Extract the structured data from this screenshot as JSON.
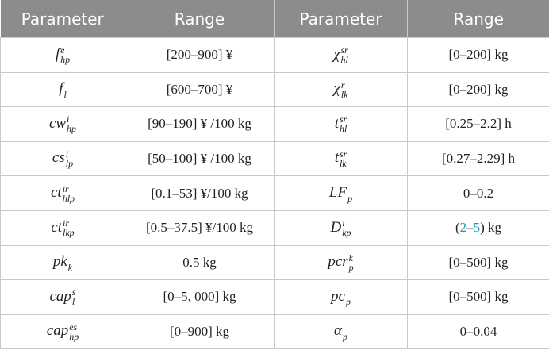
{
  "table": {
    "header": [
      "Parameter",
      "Range",
      "Parameter",
      "Range"
    ],
    "rows": [
      [
        {
          "base": "f",
          "sup": "e",
          "sub": "hp"
        },
        "[200–900] ¥",
        {
          "base": "χ",
          "sup": "sr",
          "sub": "hl"
        },
        "[0–200] kg"
      ],
      [
        {
          "base": "f",
          "sub": "l"
        },
        "[600–700] ¥",
        {
          "base": "χ",
          "sup": "r",
          "sub": "lk"
        },
        "[0–200] kg"
      ],
      [
        {
          "base": "cw",
          "sup": "i",
          "sub": "hp"
        },
        "[90–190] ¥ /100 kg",
        {
          "base": "t",
          "sup": "sr",
          "sub": "hl"
        },
        "[0.25–2.2] h"
      ],
      [
        {
          "base": "cs",
          "sup": "i",
          "sub": "lp"
        },
        "[50–100] ¥ /100 kg",
        {
          "base": "t",
          "sup": "sr",
          "sub": "lk"
        },
        "[0.27–2.29] h"
      ],
      [
        {
          "base": "ct",
          "sup": "ir",
          "sub": "hlp"
        },
        "[0.1–53] ¥/100 kg",
        {
          "base": "LF",
          "sub": "p"
        },
        "0–0.2"
      ],
      [
        {
          "base": "ct",
          "sup": "ir",
          "sub": "lkp"
        },
        "[0.5–37.5] ¥/100 kg",
        {
          "base": "D",
          "sup": "i",
          "sub": "kp"
        },
        [
          "(",
          "2",
          "–",
          "5",
          ") kg"
        ]
      ],
      [
        {
          "base": "pk",
          "sub": "k"
        },
        "0.5 kg",
        {
          "base": "pcr",
          "sup": "k",
          "sub": "p"
        },
        "[0–500] kg"
      ],
      [
        {
          "base": "cap",
          "sup": "s",
          "sub": "l"
        },
        "[0–5, 000] kg",
        {
          "base": "pc",
          "sub": "p"
        },
        "[0–500] kg"
      ],
      [
        {
          "base": "cap",
          "sup": "es",
          "sub": "hp"
        },
        "[0–900] kg",
        {
          "base": "α",
          "sub": "p"
        },
        "0–0.04"
      ]
    ]
  }
}
